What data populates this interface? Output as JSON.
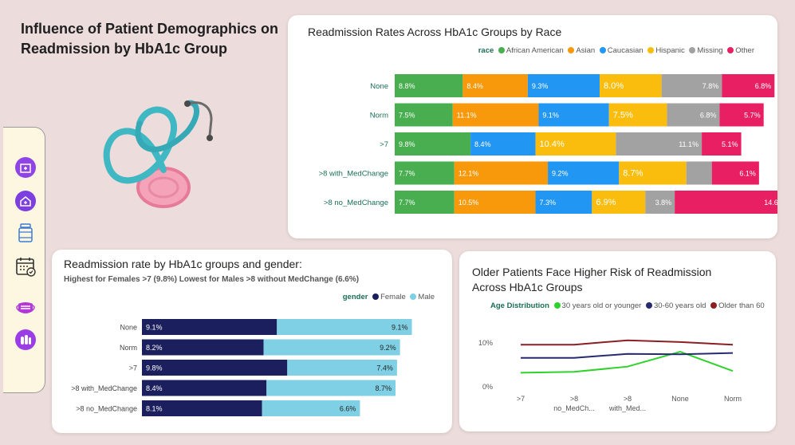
{
  "page": {
    "title": "Influence of Patient Demographics on Readmission by HbA1c Group"
  },
  "sidebar": {
    "icons": [
      "hospital-icon",
      "clinic-icon",
      "medicine-bottle-icon",
      "calendar-icon",
      "face-mask-icon",
      "pills-icon"
    ]
  },
  "colors": {
    "african_american": "#48ae4f",
    "asian": "#f7990b",
    "caucasian": "#2196f3",
    "hispanic": "#fbbd0d",
    "missing": "#a2a2a2",
    "other": "#e91f63",
    "female": "#1c1f5d",
    "male": "#80d0e5",
    "age_30_or_younger": "#2fd22a",
    "age_30_60": "#262a72",
    "age_older_60": "#8b1f24"
  },
  "chart_data": [
    {
      "id": "race",
      "type": "bar",
      "orientation": "horizontal",
      "stacked": true,
      "title": "Readmission Rates Across HbA1c Groups by Race",
      "legend_title": "race",
      "legend_position": "top-right",
      "categories": [
        "None",
        "Norm",
        ">7",
        ">8 with_MedChange",
        ">8 no_MedChange"
      ],
      "series": [
        {
          "name": "African American",
          "values": [
            8.8,
            7.5,
            9.8,
            7.7,
            7.7
          ],
          "labels": [
            "8.8%",
            "7.5%",
            "9.8%",
            "7.7%",
            "7.7%"
          ]
        },
        {
          "name": "Asian",
          "values": [
            8.4,
            11.1,
            0,
            12.1,
            10.5
          ],
          "labels": [
            "8.4%",
            "11.1%",
            "",
            "12.1%",
            "10.5%"
          ]
        },
        {
          "name": "Caucasian",
          "values": [
            9.3,
            9.1,
            8.4,
            9.2,
            7.3
          ],
          "labels": [
            "9.3%",
            "9.1%",
            "8.4%",
            "9.2%",
            "7.3%"
          ]
        },
        {
          "name": "Hispanic",
          "values": [
            8.0,
            7.5,
            10.4,
            8.7,
            6.9
          ],
          "labels": [
            "8.0%",
            "7.5%",
            "10.4%",
            "8.7%",
            "6.9%"
          ]
        },
        {
          "name": "Missing",
          "values": [
            7.8,
            6.8,
            11.1,
            3.3,
            3.8
          ],
          "labels": [
            "7.8%",
            "6.8%",
            "11.1%",
            "",
            "3.8%"
          ]
        },
        {
          "name": "Other",
          "values": [
            6.8,
            5.7,
            5.1,
            6.1,
            14.6
          ],
          "labels": [
            "6.8%",
            "5.7%",
            "5.1%",
            "6.1%",
            "14.6%"
          ]
        }
      ]
    },
    {
      "id": "gender",
      "type": "bar",
      "orientation": "horizontal",
      "stacked": true,
      "title": "Readmission rate by HbA1c groups and gender:",
      "subtitle": "Highest for Females >7 (9.8%) Lowest for Males >8 without MedChange (6.6%)",
      "legend_title": "gender",
      "legend_position": "top-right",
      "categories": [
        "None",
        "Norm",
        ">7",
        ">8 with_MedChange",
        ">8 no_MedChange"
      ],
      "series": [
        {
          "name": "Female",
          "values": [
            9.1,
            8.2,
            9.8,
            8.4,
            8.1
          ],
          "labels": [
            "9.1%",
            "8.2%",
            "9.8%",
            "8.4%",
            "8.1%"
          ]
        },
        {
          "name": "Male",
          "values": [
            9.1,
            9.2,
            7.4,
            8.7,
            6.6
          ],
          "labels": [
            "9.1%",
            "9.2%",
            "7.4%",
            "8.7%",
            "6.6%"
          ]
        }
      ]
    },
    {
      "id": "age",
      "type": "line",
      "title": "Older Patients Face Higher Risk of Readmission Across HbA1c Groups",
      "legend_title": "Age Distribution",
      "legend_position": "top-left",
      "categories": [
        ">7",
        ">8 no_MedCh...",
        ">8 with_Med...",
        "None",
        "Norm"
      ],
      "ylim": [
        0,
        13
      ],
      "yticks": [
        0,
        10
      ],
      "ytick_labels": [
        "0%",
        "10%"
      ],
      "grid": false,
      "series": [
        {
          "name": "30 years old or younger",
          "values": [
            3.2,
            3.4,
            4.6,
            8.0,
            3.6
          ]
        },
        {
          "name": "30-60 years old",
          "values": [
            6.6,
            6.6,
            7.5,
            7.4,
            7.7
          ]
        },
        {
          "name": "Older than 60",
          "values": [
            9.6,
            9.6,
            10.6,
            10.2,
            9.6
          ]
        }
      ]
    }
  ]
}
